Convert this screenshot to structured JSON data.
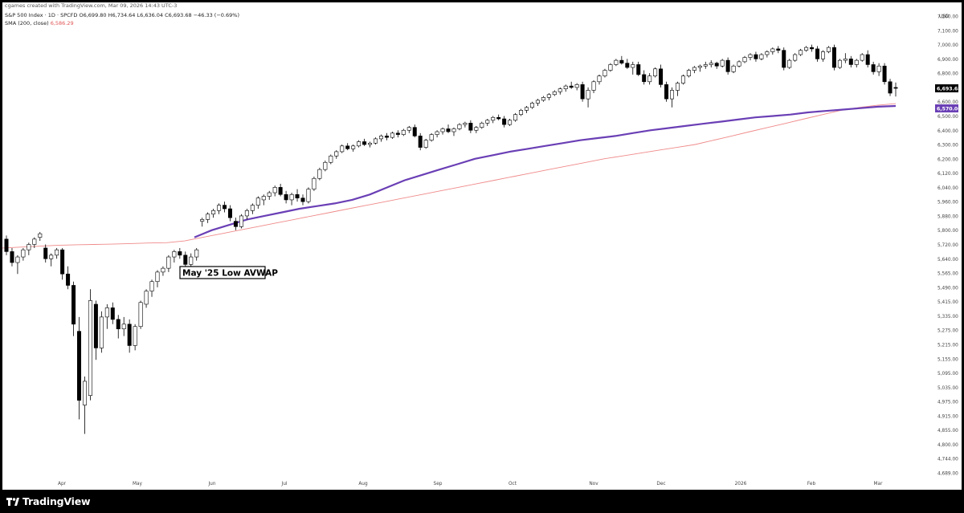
{
  "header": {
    "credit": "cgames created with TradingView.com, Mar 09, 2026 14:43 UTC-3",
    "symbol_line": "S&P 500 Index · 1D · SPCFD  O6,699.80  H6,734.64  L6,636.04  C6,693.68  −46.33 (−0.69%)",
    "sma_label": "SMA (200, close)",
    "sma_value": "6,586.29"
  },
  "footer": {
    "brand": "TradingView"
  },
  "colors": {
    "up_candle": "#ffffff",
    "down_candle": "#000000",
    "avwap": "#6a3fb5",
    "sma": "#f08a8a",
    "price_tag": "#000000",
    "avwap_tag": "#6a3fb5"
  },
  "chart_data": {
    "type": "candlestick",
    "currency_label": "USD",
    "y_axis_ticks": [
      "7,200.00",
      "7,100.00",
      "7,000.00",
      "6,900.00",
      "6,800.00",
      "6,700.00",
      "6,600.00",
      "6,500.00",
      "6,400.00",
      "6,300.00",
      "6,200.00",
      "6,120.00",
      "6,040.00",
      "5,960.00",
      "5,880.00",
      "5,800.00",
      "5,720.00",
      "5,640.00",
      "5,565.00",
      "5,490.00",
      "5,415.00",
      "5,335.00",
      "5,275.00",
      "5,215.00",
      "5,155.00",
      "5,095.00",
      "5,035.00",
      "4,975.00",
      "4,915.00",
      "4,855.00",
      "4,800.00",
      "4,744.00",
      "4,689.00"
    ],
    "x_axis_ticks": [
      "Apr",
      "May",
      "Jun",
      "Jul",
      "Aug",
      "Sep",
      "Oct",
      "Nov",
      "Dec",
      "2026",
      "Feb",
      "Mar"
    ],
    "last_price_label": "6,693.68",
    "avwap_label": "6,570.06",
    "annotation": "May '25 Low AVWAP",
    "candles": [
      [
        5750,
        5770,
        5660,
        5680
      ],
      [
        5680,
        5700,
        5600,
        5620
      ],
      [
        5620,
        5660,
        5560,
        5650
      ],
      [
        5650,
        5700,
        5630,
        5690
      ],
      [
        5690,
        5730,
        5660,
        5720
      ],
      [
        5720,
        5760,
        5700,
        5750
      ],
      [
        5760,
        5790,
        5740,
        5780
      ],
      [
        5700,
        5720,
        5620,
        5640
      ],
      [
        5640,
        5670,
        5600,
        5660
      ],
      [
        5660,
        5700,
        5640,
        5690
      ],
      [
        5690,
        5700,
        5530,
        5560
      ],
      [
        5560,
        5600,
        5480,
        5500
      ],
      [
        5500,
        5520,
        5250,
        5300
      ],
      [
        5270,
        5330,
        4900,
        4980
      ],
      [
        4960,
        5080,
        4840,
        5060
      ],
      [
        5000,
        5480,
        4980,
        5420
      ],
      [
        5400,
        5420,
        5150,
        5200
      ],
      [
        5200,
        5360,
        5180,
        5330
      ],
      [
        5330,
        5400,
        5280,
        5380
      ],
      [
        5380,
        5410,
        5300,
        5320
      ],
      [
        5320,
        5340,
        5240,
        5280
      ],
      [
        5280,
        5330,
        5250,
        5300
      ],
      [
        5300,
        5320,
        5180,
        5210
      ],
      [
        5210,
        5300,
        5190,
        5290
      ],
      [
        5290,
        5420,
        5280,
        5410
      ],
      [
        5400,
        5480,
        5380,
        5470
      ],
      [
        5470,
        5530,
        5440,
        5520
      ],
      [
        5520,
        5580,
        5490,
        5570
      ],
      [
        5570,
        5600,
        5550,
        5590
      ],
      [
        5590,
        5660,
        5570,
        5650
      ],
      [
        5650,
        5690,
        5620,
        5680
      ],
      [
        5680,
        5700,
        5640,
        5660
      ],
      [
        5660,
        5680,
        5600,
        5610
      ],
      [
        5610,
        5670,
        5590,
        5650
      ],
      [
        5650,
        5700,
        5630,
        5690
      ],
      [
        5850,
        5870,
        5820,
        5860
      ],
      [
        5860,
        5900,
        5840,
        5890
      ],
      [
        5890,
        5920,
        5870,
        5910
      ],
      [
        5910,
        5950,
        5890,
        5940
      ],
      [
        5940,
        5960,
        5900,
        5920
      ],
      [
        5920,
        5940,
        5850,
        5870
      ],
      [
        5850,
        5870,
        5800,
        5820
      ],
      [
        5820,
        5890,
        5810,
        5880
      ],
      [
        5880,
        5920,
        5860,
        5910
      ],
      [
        5910,
        5950,
        5890,
        5940
      ],
      [
        5940,
        5990,
        5920,
        5980
      ],
      [
        5970,
        6000,
        5940,
        5990
      ],
      [
        5990,
        6020,
        5970,
        6010
      ],
      [
        6010,
        6050,
        5990,
        6040
      ],
      [
        6040,
        6060,
        5990,
        6000
      ],
      [
        6000,
        6020,
        5950,
        5970
      ],
      [
        5970,
        6010,
        5940,
        6000
      ],
      [
        6000,
        6030,
        5960,
        5980
      ],
      [
        5980,
        6000,
        5940,
        5960
      ],
      [
        5960,
        6040,
        5950,
        6030
      ],
      [
        6030,
        6100,
        6020,
        6090
      ],
      [
        6090,
        6150,
        6080,
        6140
      ],
      [
        6140,
        6190,
        6130,
        6180
      ],
      [
        6180,
        6230,
        6170,
        6220
      ],
      [
        6220,
        6260,
        6200,
        6250
      ],
      [
        6250,
        6300,
        6240,
        6290
      ],
      [
        6290,
        6310,
        6260,
        6270
      ],
      [
        6270,
        6300,
        6250,
        6290
      ],
      [
        6290,
        6330,
        6280,
        6320
      ],
      [
        6320,
        6340,
        6290,
        6300
      ],
      [
        6300,
        6320,
        6280,
        6310
      ],
      [
        6310,
        6350,
        6300,
        6340
      ],
      [
        6340,
        6370,
        6320,
        6360
      ],
      [
        6360,
        6380,
        6330,
        6350
      ],
      [
        6350,
        6390,
        6340,
        6380
      ],
      [
        6380,
        6400,
        6350,
        6370
      ],
      [
        6370,
        6410,
        6360,
        6400
      ],
      [
        6400,
        6430,
        6380,
        6420
      ],
      [
        6420,
        6440,
        6350,
        6360
      ],
      [
        6360,
        6380,
        6260,
        6280
      ],
      [
        6280,
        6340,
        6270,
        6330
      ],
      [
        6330,
        6380,
        6320,
        6370
      ],
      [
        6370,
        6400,
        6350,
        6390
      ],
      [
        6390,
        6420,
        6370,
        6410
      ],
      [
        6410,
        6440,
        6380,
        6390
      ],
      [
        6390,
        6420,
        6360,
        6410
      ],
      [
        6410,
        6450,
        6400,
        6440
      ],
      [
        6440,
        6460,
        6420,
        6450
      ],
      [
        6450,
        6470,
        6380,
        6400
      ],
      [
        6400,
        6430,
        6380,
        6420
      ],
      [
        6420,
        6460,
        6410,
        6450
      ],
      [
        6450,
        6480,
        6430,
        6470
      ],
      [
        6470,
        6500,
        6450,
        6490
      ],
      [
        6490,
        6510,
        6470,
        6480
      ],
      [
        6480,
        6500,
        6420,
        6440
      ],
      [
        6440,
        6480,
        6430,
        6470
      ],
      [
        6470,
        6520,
        6460,
        6510
      ],
      [
        6510,
        6550,
        6500,
        6540
      ],
      [
        6540,
        6570,
        6520,
        6560
      ],
      [
        6560,
        6600,
        6550,
        6590
      ],
      [
        6590,
        6620,
        6570,
        6610
      ],
      [
        6610,
        6640,
        6600,
        6630
      ],
      [
        6630,
        6660,
        6610,
        6650
      ],
      [
        6650,
        6680,
        6640,
        6670
      ],
      [
        6670,
        6700,
        6650,
        6690
      ],
      [
        6690,
        6720,
        6670,
        6710
      ],
      [
        6710,
        6740,
        6690,
        6700
      ],
      [
        6700,
        6730,
        6680,
        6720
      ],
      [
        6720,
        6740,
        6600,
        6620
      ],
      [
        6620,
        6700,
        6560,
        6680
      ],
      [
        6680,
        6750,
        6660,
        6740
      ],
      [
        6740,
        6790,
        6720,
        6780
      ],
      [
        6780,
        6830,
        6770,
        6820
      ],
      [
        6820,
        6870,
        6810,
        6860
      ],
      [
        6860,
        6900,
        6850,
        6890
      ],
      [
        6890,
        6920,
        6860,
        6870
      ],
      [
        6870,
        6900,
        6830,
        6840
      ],
      [
        6840,
        6880,
        6790,
        6860
      ],
      [
        6860,
        6880,
        6780,
        6790
      ],
      [
        6790,
        6820,
        6720,
        6740
      ],
      [
        6740,
        6800,
        6720,
        6780
      ],
      [
        6780,
        6840,
        6770,
        6830
      ],
      [
        6830,
        6860,
        6700,
        6720
      ],
      [
        6720,
        6740,
        6600,
        6620
      ],
      [
        6620,
        6700,
        6560,
        6680
      ],
      [
        6680,
        6740,
        6640,
        6730
      ],
      [
        6730,
        6790,
        6720,
        6780
      ],
      [
        6780,
        6830,
        6770,
        6820
      ],
      [
        6820,
        6850,
        6800,
        6840
      ],
      [
        6840,
        6860,
        6810,
        6850
      ],
      [
        6850,
        6880,
        6830,
        6860
      ],
      [
        6860,
        6890,
        6840,
        6870
      ],
      [
        6870,
        6880,
        6830,
        6850
      ],
      [
        6850,
        6900,
        6840,
        6890
      ],
      [
        6890,
        6910,
        6790,
        6810
      ],
      [
        6810,
        6860,
        6800,
        6850
      ],
      [
        6850,
        6890,
        6840,
        6880
      ],
      [
        6880,
        6920,
        6870,
        6910
      ],
      [
        6910,
        6940,
        6890,
        6930
      ],
      [
        6930,
        6950,
        6880,
        6900
      ],
      [
        6900,
        6940,
        6890,
        6930
      ],
      [
        6930,
        6960,
        6910,
        6950
      ],
      [
        6950,
        6980,
        6930,
        6970
      ],
      [
        6970,
        6990,
        6940,
        6960
      ],
      [
        6960,
        6980,
        6820,
        6840
      ],
      [
        6840,
        6900,
        6830,
        6890
      ],
      [
        6890,
        6940,
        6880,
        6930
      ],
      [
        6930,
        6970,
        6920,
        6960
      ],
      [
        6960,
        6990,
        6950,
        6980
      ],
      [
        6980,
        7000,
        6950,
        6970
      ],
      [
        6970,
        6990,
        6880,
        6900
      ],
      [
        6900,
        6960,
        6880,
        6950
      ],
      [
        6950,
        6990,
        6940,
        6980
      ],
      [
        6980,
        7000,
        6820,
        6840
      ],
      [
        6840,
        6900,
        6830,
        6890
      ],
      [
        6890,
        6940,
        6870,
        6900
      ],
      [
        6900,
        6920,
        6840,
        6860
      ],
      [
        6860,
        6900,
        6840,
        6890
      ],
      [
        6890,
        6940,
        6880,
        6930
      ],
      [
        6930,
        6960,
        6840,
        6860
      ],
      [
        6860,
        6880,
        6790,
        6810
      ],
      [
        6810,
        6870,
        6780,
        6850
      ],
      [
        6850,
        6870,
        6720,
        6740
      ],
      [
        6740,
        6760,
        6640,
        6660
      ],
      [
        6699.8,
        6734.64,
        6636.04,
        6693.68
      ]
    ],
    "avwap": [
      5760,
      5800,
      5830,
      5860,
      5880,
      5900,
      5920,
      5935,
      5950,
      5970,
      6000,
      6040,
      6080,
      6110,
      6140,
      6170,
      6200,
      6225,
      6250,
      6270,
      6290,
      6310,
      6330,
      6345,
      6360,
      6380,
      6400,
      6415,
      6430,
      6445,
      6460,
      6475,
      6490,
      6500,
      6510,
      6525,
      6535,
      6545,
      6555,
      6565,
      6570.06
    ],
    "sma": [
      5700,
      5705,
      5710,
      5715,
      5718,
      5720,
      5722,
      5725,
      5728,
      5730,
      5740,
      5760,
      5780,
      5800,
      5820,
      5840,
      5860,
      5880,
      5900,
      5920,
      5940,
      5960,
      5980,
      6000,
      6020,
      6040,
      6060,
      6080,
      6100,
      6120,
      6140,
      6160,
      6180,
      6200,
      6220,
      6240,
      6260,
      6280,
      6300,
      6330,
      6360,
      6390,
      6420,
      6450,
      6480,
      6510,
      6540,
      6560,
      6575,
      6586.29
    ]
  }
}
